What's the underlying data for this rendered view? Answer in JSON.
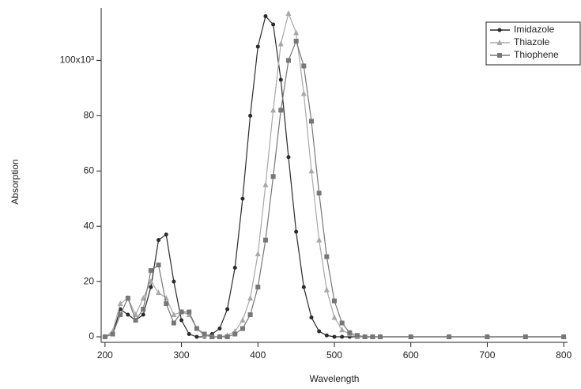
{
  "chart_data": {
    "type": "line",
    "x_label": "Wavelength",
    "y_label": "Absorption",
    "x": [
      200,
      210,
      220,
      230,
      240,
      250,
      260,
      270,
      280,
      290,
      300,
      310,
      320,
      330,
      340,
      350,
      360,
      370,
      380,
      390,
      400,
      410,
      420,
      430,
      440,
      450,
      460,
      470,
      480,
      490,
      500,
      510,
      520,
      530,
      540,
      550,
      560,
      600,
      650,
      700,
      750,
      800
    ],
    "series": [
      {
        "name": "Imidazole",
        "color": "#2a2a2a",
        "marker": "circle",
        "values": [
          0,
          1000,
          10000,
          8000,
          6000,
          8000,
          18000,
          35000,
          37000,
          20000,
          6000,
          1000,
          0,
          0,
          1000,
          3000,
          10000,
          25000,
          50000,
          80000,
          105000,
          116000,
          113000,
          93000,
          65000,
          38000,
          18000,
          7000,
          2000,
          500,
          0,
          0,
          0,
          0,
          0,
          0,
          0,
          0,
          0,
          0,
          0,
          0
        ]
      },
      {
        "name": "Thiazole",
        "color": "#a8a8a8",
        "marker": "triangle",
        "values": [
          0,
          2000,
          12000,
          14000,
          8000,
          14000,
          20000,
          16000,
          14000,
          8000,
          9000,
          8000,
          3000,
          500,
          0,
          0,
          500,
          2000,
          6000,
          14000,
          30000,
          55000,
          82000,
          106000,
          117000,
          110000,
          88000,
          60000,
          35000,
          17000,
          7000,
          2500,
          1000,
          0,
          0,
          0,
          0,
          0,
          0,
          0,
          0,
          0
        ]
      },
      {
        "name": "Thiophene",
        "color": "#777777",
        "marker": "square",
        "values": [
          0,
          1000,
          8000,
          14000,
          6000,
          10000,
          24000,
          26000,
          12000,
          5000,
          9000,
          9000,
          3000,
          1000,
          0,
          0,
          0,
          1000,
          3000,
          8000,
          18000,
          35000,
          58000,
          82000,
          100000,
          107000,
          98000,
          78000,
          52000,
          29000,
          13000,
          5000,
          1500,
          500,
          0,
          0,
          0,
          0,
          0,
          0,
          0,
          0
        ]
      }
    ],
    "xlim": [
      195,
      805
    ],
    "ylim": [
      -2000,
      119000
    ],
    "xticks": [
      200,
      300,
      400,
      500,
      600,
      700,
      800
    ],
    "yticks": [
      0,
      {
        "value": 20000,
        "label": "20"
      },
      {
        "value": 40000,
        "label": "40"
      },
      {
        "value": 60000,
        "label": "60"
      },
      {
        "value": 80000,
        "label": "80"
      },
      {
        "value": 100000,
        "label": "100x10³"
      }
    ],
    "legend": "top-right"
  }
}
